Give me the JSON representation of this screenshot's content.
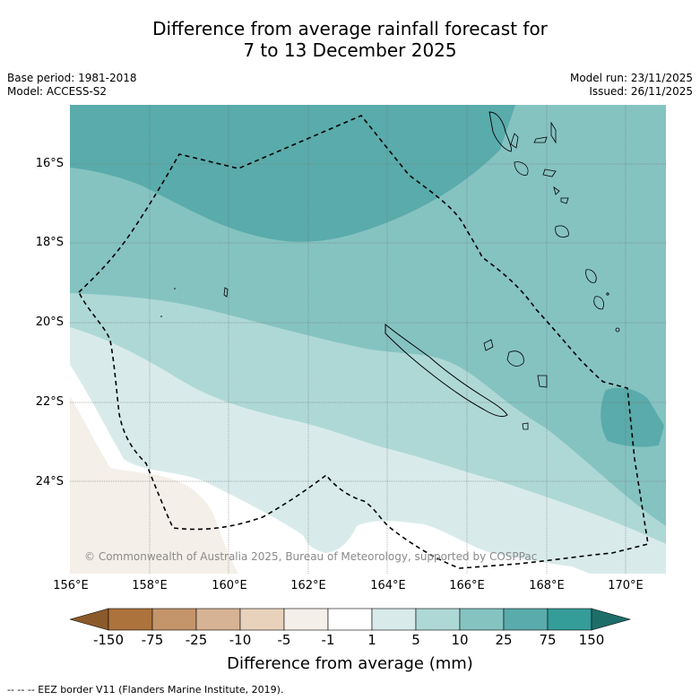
{
  "title": {
    "line1": "Difference from average rainfall forecast for",
    "line2": "7 to 13 December 2025"
  },
  "meta": {
    "base_period": "Base period: 1981-2018",
    "model": "Model: ACCESS-S2",
    "model_run": "Model run: 23/11/2025",
    "issued": "Issued: 26/11/2025"
  },
  "map": {
    "lat_labels": [
      "16°S",
      "18°S",
      "20°S",
      "22°S",
      "24°S"
    ],
    "lon_labels": [
      "156°E",
      "158°E",
      "160°E",
      "162°E",
      "164°E",
      "166°E",
      "168°E",
      "170°E"
    ],
    "copyright": "© Commonwealth of Australia 2025, Bureau of Meteorology, supported by COSPPac"
  },
  "colorbar": {
    "labels": [
      "-150",
      "-75",
      "-25",
      "-10",
      "-5",
      "-1",
      "1",
      "5",
      "10",
      "25",
      "75",
      "150"
    ],
    "colors": [
      "#8b5a2b",
      "#ac733c",
      "#c4946a",
      "#d6b394",
      "#e8d2bc",
      "#f4efe8",
      "#ffffff",
      "#d8ebea",
      "#aed8d6",
      "#85c3c1",
      "#5aabab",
      "#349c99",
      "#1d6e6a"
    ],
    "title": "Difference from average (mm)"
  },
  "footnote": "--  --  -- EEZ border V11 (Flanders Marine Institute, 2019)."
}
